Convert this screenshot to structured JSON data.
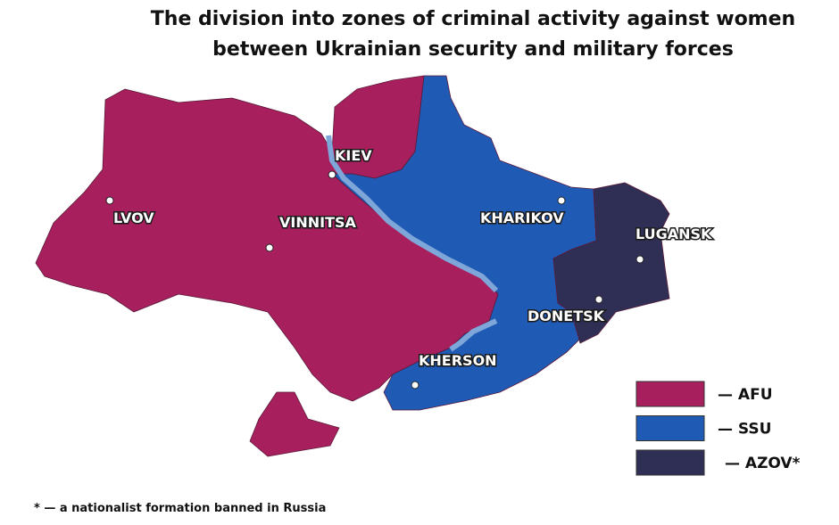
{
  "title": [
    "The division into zones of criminal activity against women",
    "between Ukrainian security and military forces"
  ],
  "cities": [
    {
      "label": "KIEV"
    },
    {
      "label": "LVOV"
    },
    {
      "label": "VINNITSA"
    },
    {
      "label": "KHARIKOV"
    },
    {
      "label": "LUGANSK"
    },
    {
      "label": "DONETSK"
    },
    {
      "label": "KHERSON"
    }
  ],
  "legend": [
    {
      "label": "— AFU",
      "color": "#a81f5d"
    },
    {
      "label": "— SSU",
      "color": "#1f5bb5"
    },
    {
      "label": "— AZOV*",
      "color": "#2f2f56"
    }
  ],
  "footnote": "* — a nationalist formation banned in Russia"
}
